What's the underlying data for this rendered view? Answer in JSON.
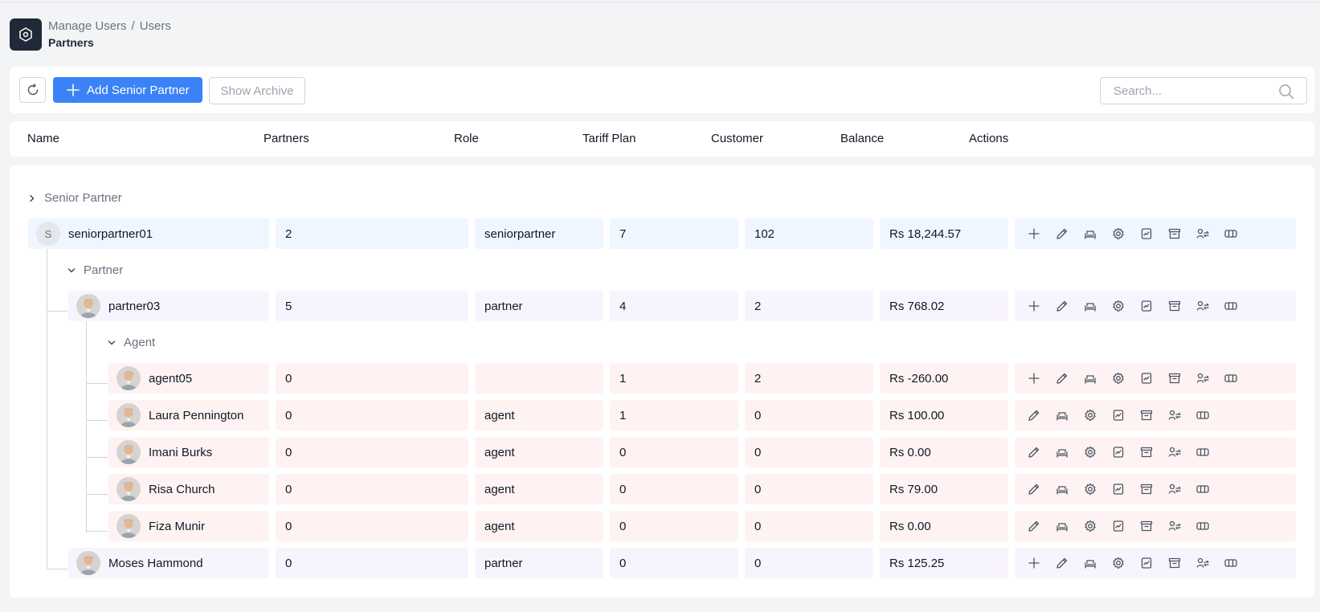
{
  "breadcrumb": {
    "parent": "Manage Users",
    "separator": "/",
    "current": "Users"
  },
  "page_title": "Partners",
  "toolbar": {
    "add_label": "Add Senior Partner",
    "archive_label": "Show Archive",
    "search_placeholder": "Search..."
  },
  "columns": [
    "Name",
    "Partners",
    "Role",
    "Tariff Plan",
    "Customer",
    "Balance",
    "Actions"
  ],
  "groups": {
    "senior": "Senior Partner",
    "partner": "Partner",
    "agent": "Agent"
  },
  "colors": {
    "accent": "#3b82f6",
    "senior_row": "#eff6ff",
    "partner_row": "#f8f4fe",
    "agent_row": "#fef3f2"
  },
  "rows": [
    {
      "name": "seniorpartner01",
      "avatar": "S",
      "partners": "2",
      "role": "seniorpartner",
      "tariff": "7",
      "customer": "102",
      "balance": "Rs 18,244.57"
    },
    {
      "name": "partner03",
      "partners": "5",
      "role": "partner",
      "tariff": "4",
      "customer": "2",
      "balance": "Rs 768.02"
    },
    {
      "name": "agent05",
      "partners": "0",
      "role": "",
      "tariff": "1",
      "customer": "2",
      "balance": "Rs -260.00"
    },
    {
      "name": "Laura Pennington",
      "partners": "0",
      "role": "agent",
      "tariff": "1",
      "customer": "0",
      "balance": "Rs 100.00"
    },
    {
      "name": "Imani Burks",
      "partners": "0",
      "role": "agent",
      "tariff": "0",
      "customer": "0",
      "balance": "Rs 0.00"
    },
    {
      "name": "Risa Church",
      "partners": "0",
      "role": "agent",
      "tariff": "0",
      "customer": "0",
      "balance": "Rs 79.00"
    },
    {
      "name": "Fiza Munir",
      "partners": "0",
      "role": "agent",
      "tariff": "0",
      "customer": "0",
      "balance": "Rs 0.00"
    },
    {
      "name": "Moses Hammond",
      "partners": "0",
      "role": "partner",
      "tariff": "0",
      "customer": "0",
      "balance": "Rs 125.25"
    }
  ],
  "action_icons": [
    "plus-icon",
    "edit-icon",
    "sofa-icon",
    "settings-icon",
    "report-icon",
    "archive-icon",
    "transfer-icon",
    "cash-icon"
  ]
}
